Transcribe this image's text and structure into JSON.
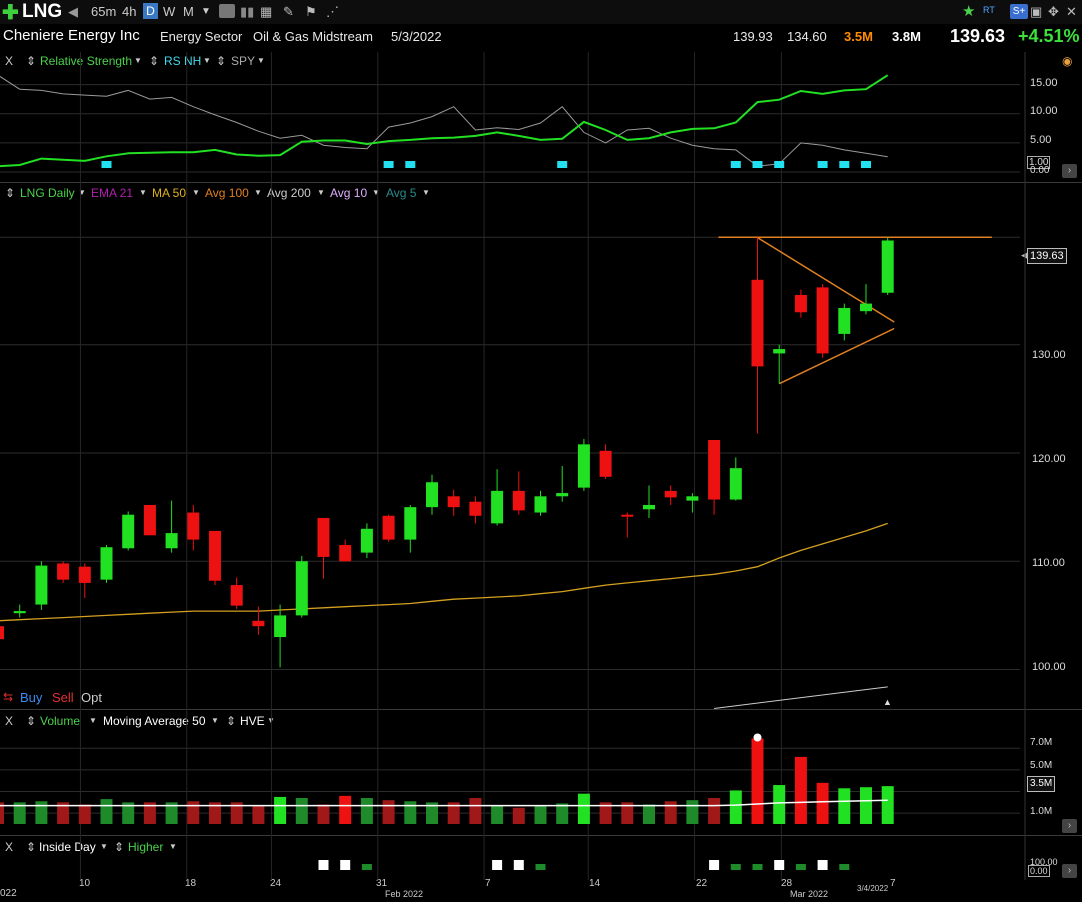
{
  "toolbar": {
    "symbol": "LNG",
    "intervals": [
      "65m",
      "4h",
      "D",
      "W",
      "M"
    ],
    "active_interval": "D",
    "rt_label": "RT"
  },
  "info": {
    "company": "Cheniere Energy Inc",
    "sector": "Energy Sector",
    "industry": "Oil & Gas Midstream",
    "date": "5/3/2022",
    "high": "139.93",
    "low": "134.60",
    "volume": "3.5M",
    "avg_volume": "3.8M",
    "price": "139.63",
    "change": "+4.51%"
  },
  "rs_panel": {
    "close": "X",
    "label1": "Relative Strength",
    "label2": "RS NH",
    "label3": "SPY",
    "axis": [
      "15.00",
      "10.00",
      "5.00",
      "1.00",
      "0.00"
    ]
  },
  "price_panel": {
    "symbol_label": "LNG Daily",
    "indicators": [
      {
        "label": "EMA 21",
        "color": "#b020b0"
      },
      {
        "label": "MA 50",
        "color": "#e0b020"
      },
      {
        "label": "Avg 100",
        "color": "#e08020"
      },
      {
        "label": "Avg 200",
        "color": "#cccccc"
      },
      {
        "label": "Avg 10",
        "color": "#e0b0ff"
      },
      {
        "label": "Avg 5",
        "color": "#2a8a8a"
      }
    ],
    "axis": [
      "130.00",
      "120.00",
      "110.00",
      "100.00"
    ],
    "last_price_tag": "139.63",
    "buy": "Buy",
    "sell": "Sell",
    "opt": "Opt"
  },
  "volume_panel": {
    "close": "X",
    "label1": "Volume",
    "label2": "Moving Average 50",
    "label3": "HVE",
    "axis": [
      "7.0M",
      "5.0M",
      "1.0M"
    ],
    "tag": "3.5M"
  },
  "pattern_panel": {
    "close": "X",
    "label1": "Inside Day",
    "label2": "Higher",
    "axis": [
      "100.00",
      "0.00"
    ]
  },
  "dates": [
    {
      "label": "022"
    },
    {
      "label": "10"
    },
    {
      "label": "18"
    },
    {
      "label": "24"
    },
    {
      "label": "31"
    },
    {
      "label": "Feb 2022"
    },
    {
      "label": "7"
    },
    {
      "label": "14"
    },
    {
      "label": "22"
    },
    {
      "label": "28"
    },
    {
      "label": "Mar 2022"
    },
    {
      "label": "3/4/2022"
    },
    {
      "label": "7"
    }
  ],
  "chart_data": {
    "type": "candlestick",
    "ylim": [
      97,
      143
    ],
    "candles": [
      {
        "o": 104.0,
        "h": 104.5,
        "l": 102.8,
        "c": 102.8
      },
      {
        "o": 105.2,
        "h": 106.0,
        "l": 104.8,
        "c": 105.4
      },
      {
        "o": 106.0,
        "h": 110.0,
        "l": 105.5,
        "c": 109.6
      },
      {
        "o": 109.8,
        "h": 110.0,
        "l": 108.0,
        "c": 108.3
      },
      {
        "o": 109.5,
        "h": 109.8,
        "l": 106.6,
        "c": 108.0
      },
      {
        "o": 108.3,
        "h": 111.5,
        "l": 108.0,
        "c": 111.3
      },
      {
        "o": 111.2,
        "h": 114.6,
        "l": 111.0,
        "c": 114.3
      },
      {
        "o": 115.2,
        "h": 115.2,
        "l": 112.4,
        "c": 112.4
      },
      {
        "o": 111.2,
        "h": 115.6,
        "l": 110.8,
        "c": 112.6
      },
      {
        "o": 114.5,
        "h": 115.2,
        "l": 111.0,
        "c": 112.0
      },
      {
        "o": 112.8,
        "h": 112.8,
        "l": 107.8,
        "c": 108.2
      },
      {
        "o": 107.8,
        "h": 108.5,
        "l": 105.6,
        "c": 105.9
      },
      {
        "o": 104.5,
        "h": 105.8,
        "l": 103.2,
        "c": 104.0
      },
      {
        "o": 103.0,
        "h": 106.0,
        "l": 100.2,
        "c": 105.0
      },
      {
        "o": 105.0,
        "h": 110.5,
        "l": 104.8,
        "c": 110.0
      },
      {
        "o": 114.0,
        "h": 114.0,
        "l": 108.4,
        "c": 110.4
      },
      {
        "o": 111.5,
        "h": 112.0,
        "l": 110.0,
        "c": 110.0
      },
      {
        "o": 110.8,
        "h": 113.5,
        "l": 110.3,
        "c": 113.0
      },
      {
        "o": 114.2,
        "h": 114.3,
        "l": 111.8,
        "c": 112.0
      },
      {
        "o": 112.0,
        "h": 115.2,
        "l": 110.8,
        "c": 115.0
      },
      {
        "o": 115.0,
        "h": 118.0,
        "l": 114.3,
        "c": 117.3
      },
      {
        "o": 116.0,
        "h": 116.6,
        "l": 114.2,
        "c": 115.0
      },
      {
        "o": 115.5,
        "h": 116.0,
        "l": 113.5,
        "c": 114.2
      },
      {
        "o": 113.5,
        "h": 118.5,
        "l": 113.3,
        "c": 116.5
      },
      {
        "o": 116.5,
        "h": 118.3,
        "l": 114.3,
        "c": 114.7
      },
      {
        "o": 114.5,
        "h": 116.5,
        "l": 114.2,
        "c": 116.0
      },
      {
        "o": 116.0,
        "h": 118.8,
        "l": 115.5,
        "c": 116.3
      },
      {
        "o": 116.8,
        "h": 121.3,
        "l": 116.5,
        "c": 120.8
      },
      {
        "o": 120.2,
        "h": 120.8,
        "l": 117.6,
        "c": 117.8
      },
      {
        "o": 114.3,
        "h": 114.5,
        "l": 112.2,
        "c": 114.2
      },
      {
        "o": 114.8,
        "h": 117.0,
        "l": 114.0,
        "c": 115.2
      },
      {
        "o": 116.5,
        "h": 117.0,
        "l": 115.2,
        "c": 115.9
      },
      {
        "o": 115.6,
        "h": 116.3,
        "l": 114.5,
        "c": 116.0
      },
      {
        "o": 121.2,
        "h": 121.2,
        "l": 114.3,
        "c": 115.7
      },
      {
        "o": 115.7,
        "h": 119.6,
        "l": 115.6,
        "c": 118.6
      },
      {
        "o": 136.0,
        "h": 139.9,
        "l": 121.8,
        "c": 128.0
      },
      {
        "o": 129.2,
        "h": 130.0,
        "l": 126.4,
        "c": 129.6
      },
      {
        "o": 134.6,
        "h": 135.1,
        "l": 132.5,
        "c": 133.0
      },
      {
        "o": 135.3,
        "h": 135.6,
        "l": 128.8,
        "c": 129.2
      },
      {
        "o": 131.0,
        "h": 133.8,
        "l": 130.4,
        "c": 133.4
      },
      {
        "o": 133.1,
        "h": 135.6,
        "l": 132.8,
        "c": 133.8
      },
      {
        "o": 134.8,
        "h": 139.9,
        "l": 134.6,
        "c": 139.63
      }
    ],
    "ma50": [
      104.5,
      104.6,
      104.7,
      104.8,
      104.9,
      105.0,
      105.1,
      105.2,
      105.3,
      105.4,
      105.4,
      105.4,
      105.4,
      105.5,
      105.6,
      105.7,
      105.8,
      105.9,
      106.0,
      106.1,
      106.3,
      106.5,
      106.6,
      106.7,
      106.8,
      107.0,
      107.2,
      107.5,
      107.8,
      108.0,
      108.2,
      108.4,
      108.6,
      108.8,
      109.1,
      109.5,
      110.3,
      111.0,
      111.6,
      112.2,
      112.8,
      113.5
    ],
    "ma200": [
      {
        "i": 33,
        "v": 96.4
      },
      {
        "i": 41,
        "v": 98.4
      }
    ],
    "resistance": 139.93,
    "triangle": {
      "apex_index": 41,
      "apex": 132.1,
      "top_start": 139.9,
      "bottom_start": 126.4
    },
    "rs_line": [
      1.0,
      1.2,
      2.3,
      2.1,
      1.9,
      2.7,
      3.2,
      3.3,
      3.4,
      3.4,
      3.8,
      3.0,
      2.8,
      2.9,
      5.2,
      5.4,
      5.4,
      4.8,
      5.3,
      5.5,
      5.8,
      5.9,
      6.2,
      6.8,
      6.2,
      5.5,
      5.7,
      8.6,
      7.2,
      5.5,
      5.8,
      6.8,
      7.4,
      7.5,
      8.5,
      12.0,
      12.4,
      13.9,
      13.4,
      14.0,
      14.2,
      16.6
    ],
    "spy_line": [
      16.6,
      14.2,
      14.0,
      13.4,
      13.2,
      13.0,
      14.0,
      12.5,
      12.8,
      11.2,
      9.8,
      8.5,
      7.0,
      5.8,
      6.3,
      4.6,
      4.2,
      4.0,
      7.7,
      8.4,
      9.5,
      11.2,
      7.2,
      7.6,
      7.3,
      8.4,
      11.2,
      6.8,
      5.0,
      7.2,
      7.5,
      5.8,
      4.6,
      4.0,
      3.8,
      1.0,
      1.4,
      5.0,
      4.6,
      3.8,
      3.2,
      2.6
    ],
    "rs_nh_markers": [
      5,
      18,
      19,
      26,
      34,
      35,
      36,
      38,
      39,
      40
    ],
    "volumes": [
      2.0,
      2.0,
      2.1,
      2.0,
      1.8,
      2.3,
      2.0,
      2.0,
      2.0,
      2.1,
      2.0,
      2.0,
      1.7,
      2.5,
      2.4,
      1.8,
      2.6,
      2.4,
      2.2,
      2.1,
      2.0,
      2.0,
      2.4,
      1.7,
      1.5,
      1.7,
      1.9,
      2.8,
      2.0,
      2.0,
      1.8,
      2.1,
      2.2,
      2.4,
      3.1,
      7.9,
      3.6,
      6.2,
      3.8,
      3.3,
      3.4,
      3.5
    ],
    "vol_ma50": [
      1.7,
      1.7,
      1.7,
      1.7,
      1.7,
      1.7,
      1.7,
      1.7,
      1.7,
      1.7,
      1.7,
      1.7,
      1.7,
      1.7,
      1.7,
      1.7,
      1.7,
      1.7,
      1.7,
      1.7,
      1.7,
      1.7,
      1.7,
      1.7,
      1.7,
      1.7,
      1.7,
      1.7,
      1.7,
      1.7,
      1.7,
      1.7,
      1.7,
      1.7,
      1.75,
      1.85,
      1.95,
      2.0,
      2.05,
      2.1,
      2.15,
      2.2
    ],
    "vol_ylim": [
      0,
      8.5
    ],
    "inside_day_markers": [
      15,
      16,
      23,
      24,
      33,
      36,
      38
    ],
    "higher_markers": [
      17,
      25,
      34,
      35,
      37,
      39
    ]
  }
}
